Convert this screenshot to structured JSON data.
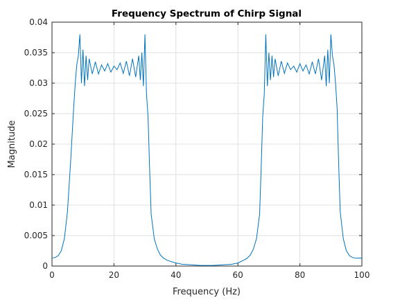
{
  "chart_data": {
    "type": "line",
    "title": "Frequency Spectrum of Chirp Signal",
    "xlabel": "Frequency (Hz)",
    "ylabel": "Magnitude",
    "xlim": [
      0,
      100
    ],
    "ylim": [
      0,
      0.04
    ],
    "xticks": [
      "0",
      "20",
      "40",
      "60",
      "80",
      "100"
    ],
    "yticks": [
      "0",
      "0.005",
      "0.01",
      "0.015",
      "0.02",
      "0.025",
      "0.03",
      "0.035",
      "0.04"
    ],
    "grid": true,
    "line_color": "#0072BD",
    "series": [
      {
        "x": [
          0,
          1,
          2,
          3,
          4,
          5,
          6,
          7,
          7.5,
          8,
          8.5,
          9,
          9.5,
          10,
          10.5,
          11,
          11.5,
          12,
          13,
          14,
          15,
          16,
          17,
          18,
          19,
          20,
          21,
          22,
          23,
          24,
          25,
          26,
          27,
          28,
          28.5,
          29,
          29.5,
          30,
          30.5,
          31,
          31.5,
          32,
          33,
          34,
          35,
          36,
          37,
          38,
          40,
          42,
          45,
          48,
          50,
          52,
          55,
          58,
          60,
          62,
          63,
          64,
          65,
          66,
          67,
          67.5,
          68,
          68.5,
          69,
          69.5,
          70,
          70.5,
          71,
          71.5,
          72,
          73,
          74,
          75,
          76,
          77,
          78,
          79,
          80,
          81,
          82,
          83,
          84,
          85,
          86,
          87,
          88,
          88.5,
          89,
          89.5,
          90,
          90.5,
          91,
          91.5,
          92,
          92.5,
          93,
          94,
          95,
          96,
          97,
          98,
          99,
          100
        ],
        "values": [
          0.0013,
          0.0014,
          0.0017,
          0.0025,
          0.0045,
          0.009,
          0.017,
          0.026,
          0.03,
          0.033,
          0.0345,
          0.038,
          0.03,
          0.0355,
          0.0295,
          0.0345,
          0.0305,
          0.034,
          0.0315,
          0.0335,
          0.0315,
          0.033,
          0.032,
          0.0332,
          0.0318,
          0.0328,
          0.0322,
          0.0333,
          0.0316,
          0.0336,
          0.0312,
          0.034,
          0.031,
          0.0345,
          0.0305,
          0.035,
          0.0295,
          0.038,
          0.0282,
          0.0245,
          0.016,
          0.0085,
          0.0045,
          0.0028,
          0.0018,
          0.0013,
          0.001,
          0.0008,
          0.0005,
          0.0003,
          0.0002,
          0.0001,
          0.0001,
          0.0001,
          0.0002,
          0.0003,
          0.0005,
          0.001,
          0.0013,
          0.0018,
          0.0028,
          0.0045,
          0.0085,
          0.016,
          0.0245,
          0.0282,
          0.038,
          0.0295,
          0.035,
          0.0305,
          0.0345,
          0.031,
          0.034,
          0.0312,
          0.0336,
          0.0316,
          0.0333,
          0.0322,
          0.0328,
          0.0318,
          0.0332,
          0.032,
          0.033,
          0.0315,
          0.0335,
          0.0315,
          0.034,
          0.0305,
          0.0345,
          0.0295,
          0.0355,
          0.03,
          0.038,
          0.0345,
          0.033,
          0.03,
          0.026,
          0.017,
          0.009,
          0.0045,
          0.0025,
          0.0017,
          0.0014,
          0.0013,
          0.0013,
          0.0013
        ]
      }
    ]
  }
}
